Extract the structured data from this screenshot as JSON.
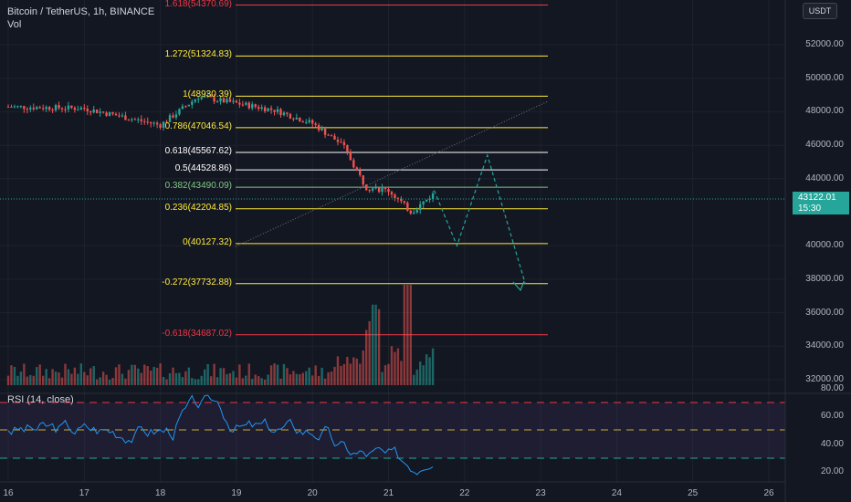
{
  "header": {
    "symbol_line": "Bitcoin / TetherUS, 1h, BINANCE",
    "volume_label": "Vol",
    "currency_button": "USDT"
  },
  "fib_levels": [
    {
      "label": "1.618(54370.69)",
      "price": 54370.69,
      "color": "#f23645"
    },
    {
      "label": "1.272(51324.83)",
      "price": 51324.83,
      "color": "#ffeb3b"
    },
    {
      "label": "1(48930.39)",
      "price": 48930.39,
      "color": "#ffeb3b"
    },
    {
      "label": "0.786(47046.54)",
      "price": 47046.54,
      "color": "#ffeb3b"
    },
    {
      "label": "0.618(45567.62)",
      "price": 45567.62,
      "color": "#ffffff"
    },
    {
      "label": "0.5(44528.86)",
      "price": 44528.86,
      "color": "#ffffff"
    },
    {
      "label": "0.382(43490.09)",
      "price": 43490.09,
      "color": "#81c784"
    },
    {
      "label": "0.236(42204.85)",
      "price": 42204.85,
      "color": "#ffeb3b"
    },
    {
      "label": "0(40127.32)",
      "price": 40127.32,
      "color": "#ffeb3b"
    },
    {
      "label": "-0.272(37732.88)",
      "price": 37732.88,
      "color": "#ffeb3b"
    },
    {
      "label": "-0.618(34687.02)",
      "price": 34687.02,
      "color": "#f23645"
    }
  ],
  "price_axis": [
    "52000.00",
    "50000.00",
    "48000.00",
    "46000.00",
    "44000.00",
    "40000.00",
    "38000.00",
    "36000.00",
    "34000.00",
    "32000.00"
  ],
  "current_price": {
    "value": "43122.01",
    "countdown": "15:30"
  },
  "rsi": {
    "title": "RSI (14, close)",
    "axis": [
      "80.00",
      "60.00",
      "40.00",
      "20.00"
    ]
  },
  "time_axis": [
    "16",
    "17",
    "18",
    "19",
    "20",
    "21",
    "22",
    "23",
    "24",
    "25",
    "26"
  ],
  "colors": {
    "up": "#26a69a",
    "down": "#ef5350",
    "rsi": "#2196f3",
    "projection": "#26a69a"
  },
  "chart_data": {
    "type": "candlestick",
    "symbol": "BTCUSDT",
    "interval": "1h",
    "ylim": [
      31500,
      54500
    ],
    "approx_close_path": [
      [
        "16",
        48300
      ],
      [
        "17",
        48200
      ],
      [
        "18",
        47200
      ],
      [
        "18.5",
        48900
      ],
      [
        "19",
        48500
      ],
      [
        "19.5",
        48100
      ],
      [
        "20",
        47300
      ],
      [
        "20.4",
        46000
      ],
      [
        "20.7",
        43500
      ],
      [
        "21",
        43300
      ],
      [
        "21.3",
        42000
      ],
      [
        "21.6",
        43122
      ]
    ],
    "projection_path": [
      [
        "21.6",
        43300
      ],
      [
        "21.9",
        40000
      ],
      [
        "22.3",
        45400
      ],
      [
        "22.8",
        37700
      ]
    ],
    "rsi_levels": [
      70,
      50,
      30
    ]
  }
}
